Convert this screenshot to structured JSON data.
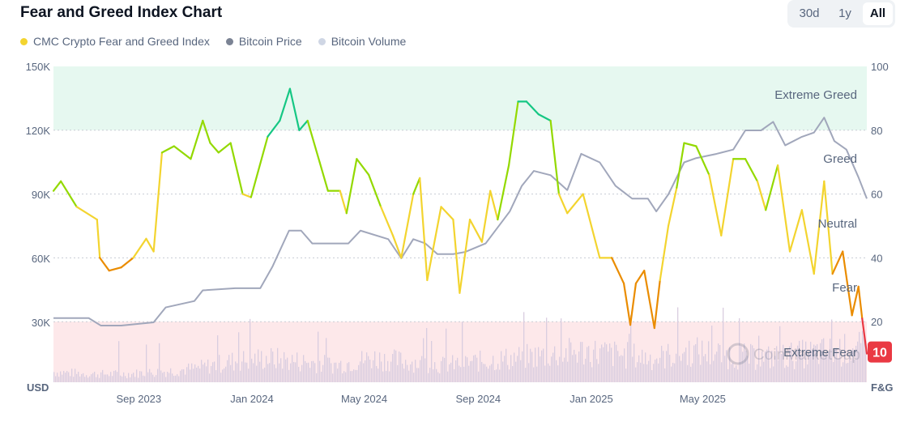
{
  "title": "Fear and Greed Index Chart",
  "range_buttons": [
    {
      "label": "30d",
      "active": false
    },
    {
      "label": "1y",
      "active": false
    },
    {
      "label": "All",
      "active": true
    }
  ],
  "legend": [
    {
      "label": "CMC Crypto Fear and Greed Index",
      "color": "#f3d42f"
    },
    {
      "label": "Bitcoin Price",
      "color": "#7b8394"
    },
    {
      "label": "Bitcoin Volume",
      "color": "#cfd6e4"
    }
  ],
  "watermark": "CoinMarketCap",
  "current_value": "10",
  "chart_data": {
    "type": "line",
    "x_range": [
      "2023-06-01",
      "2025-10-25"
    ],
    "x_ticks": [
      {
        "date": "2023-09-01",
        "label": "Sep 2023"
      },
      {
        "date": "2024-01-01",
        "label": "Jan 2024"
      },
      {
        "date": "2024-05-01",
        "label": "May 2024"
      },
      {
        "date": "2024-09-01",
        "label": "Sep 2024"
      },
      {
        "date": "2025-01-01",
        "label": "Jan 2025"
      },
      {
        "date": "2025-05-01",
        "label": "May 2025"
      }
    ],
    "left_axis": {
      "label": "USD",
      "range": [
        0,
        150000
      ],
      "ticks": [
        "30K",
        "60K",
        "90K",
        "120K",
        "150K"
      ],
      "tick_values": [
        30000,
        60000,
        90000,
        120000,
        150000
      ]
    },
    "right_axis": {
      "label": "F&G",
      "range": [
        0,
        100
      ],
      "ticks": [
        "20",
        "40",
        "60",
        "80",
        "100"
      ],
      "tick_values": [
        20,
        40,
        60,
        80,
        100
      ]
    },
    "zones": [
      {
        "label": "Extreme Greed",
        "from": 80,
        "to": 100,
        "color": "#e6f8f0"
      },
      {
        "label": "Greed",
        "from": 60,
        "to": 80
      },
      {
        "label": "Neutral",
        "from": 40,
        "to": 60
      },
      {
        "label": "Fear",
        "from": 20,
        "to": 40
      },
      {
        "label": "Extreme Fear",
        "from": 0,
        "to": 20,
        "color": "#fde8ea"
      }
    ],
    "grid": true,
    "series": [
      {
        "name": "CMC Crypto Fear and Greed Index",
        "axis": "right",
        "colors": {
          "extreme_fear": "#ea3943",
          "fear": "#ea8c00",
          "neutral": "#f3d42f",
          "greed": "#93d900",
          "extreme_greed": "#16c784"
        },
        "points": [
          [
            "2023-06-01",
            61
          ],
          [
            "2023-06-09",
            64
          ],
          [
            "2023-06-26",
            56
          ],
          [
            "2023-07-18",
            52
          ],
          [
            "2023-07-21",
            40
          ],
          [
            "2023-07-31",
            36
          ],
          [
            "2023-08-13",
            37
          ],
          [
            "2023-08-26",
            40
          ],
          [
            "2023-09-09",
            46
          ],
          [
            "2023-09-17",
            42
          ],
          [
            "2023-09-26",
            73
          ],
          [
            "2023-10-09",
            75
          ],
          [
            "2023-10-27",
            71
          ],
          [
            "2023-11-09",
            83
          ],
          [
            "2023-11-17",
            76
          ],
          [
            "2023-11-26",
            73
          ],
          [
            "2023-12-09",
            76
          ],
          [
            "2023-12-22",
            60
          ],
          [
            "2023-12-31",
            59
          ],
          [
            "2024-01-18",
            78
          ],
          [
            "2024-01-31",
            83
          ],
          [
            "2024-02-11",
            93
          ],
          [
            "2024-02-21",
            80
          ],
          [
            "2024-03-01",
            83
          ],
          [
            "2024-03-14",
            70
          ],
          [
            "2024-03-23",
            61
          ],
          [
            "2024-04-05",
            61
          ],
          [
            "2024-04-12",
            54
          ],
          [
            "2024-04-23",
            71
          ],
          [
            "2024-05-06",
            66
          ],
          [
            "2024-05-19",
            56
          ],
          [
            "2024-06-01",
            47
          ],
          [
            "2024-06-10",
            40
          ],
          [
            "2024-06-23",
            60
          ],
          [
            "2024-06-30",
            65
          ],
          [
            "2024-07-08",
            33
          ],
          [
            "2024-07-23",
            56
          ],
          [
            "2024-08-05",
            52
          ],
          [
            "2024-08-12",
            29
          ],
          [
            "2024-08-23",
            52
          ],
          [
            "2024-09-05",
            45
          ],
          [
            "2024-09-14",
            61
          ],
          [
            "2024-09-22",
            52
          ],
          [
            "2024-10-04",
            69
          ],
          [
            "2024-10-14",
            89
          ],
          [
            "2024-10-23",
            89
          ],
          [
            "2024-11-05",
            85
          ],
          [
            "2024-11-18",
            83
          ],
          [
            "2024-11-27",
            60
          ],
          [
            "2024-12-06",
            54
          ],
          [
            "2024-12-23",
            60
          ],
          [
            "2025-01-10",
            40
          ],
          [
            "2025-01-23",
            40
          ],
          [
            "2025-02-05",
            32
          ],
          [
            "2025-02-12",
            19
          ],
          [
            "2025-02-18",
            32
          ],
          [
            "2025-02-27",
            36
          ],
          [
            "2025-03-10",
            18
          ],
          [
            "2025-03-16",
            33
          ],
          [
            "2025-03-25",
            50
          ],
          [
            "2025-04-03",
            62
          ],
          [
            "2025-04-11",
            76
          ],
          [
            "2025-04-24",
            75
          ],
          [
            "2025-05-08",
            66
          ],
          [
            "2025-05-21",
            47
          ],
          [
            "2025-06-03",
            71
          ],
          [
            "2025-06-16",
            71
          ],
          [
            "2025-06-29",
            64
          ],
          [
            "2025-07-08",
            55
          ],
          [
            "2025-07-21",
            69
          ],
          [
            "2025-08-03",
            42
          ],
          [
            "2025-08-16",
            55
          ],
          [
            "2025-08-29",
            35
          ],
          [
            "2025-09-09",
            64
          ],
          [
            "2025-09-18",
            35
          ],
          [
            "2025-09-29",
            42
          ],
          [
            "2025-10-09",
            22
          ],
          [
            "2025-10-16",
            31
          ],
          [
            "2025-10-20",
            21
          ],
          [
            "2025-10-25",
            10
          ]
        ]
      },
      {
        "name": "Bitcoin Price",
        "axis": "left",
        "color": "#a1a7bb",
        "points": [
          [
            "2023-06-01",
            32000
          ],
          [
            "2023-07-09",
            32000
          ],
          [
            "2023-07-22",
            28500
          ],
          [
            "2023-08-13",
            28500
          ],
          [
            "2023-09-17",
            30000
          ],
          [
            "2023-09-30",
            37000
          ],
          [
            "2023-10-31",
            40000
          ],
          [
            "2023-11-09",
            45000
          ],
          [
            "2023-12-14",
            46000
          ],
          [
            "2024-01-10",
            46000
          ],
          [
            "2024-01-23",
            56000
          ],
          [
            "2024-02-10",
            73000
          ],
          [
            "2024-02-23",
            73000
          ],
          [
            "2024-03-06",
            67000
          ],
          [
            "2024-03-19",
            67000
          ],
          [
            "2024-04-14",
            67000
          ],
          [
            "2024-04-27",
            73000
          ],
          [
            "2024-05-27",
            69000
          ],
          [
            "2024-06-10",
            60000
          ],
          [
            "2024-06-23",
            69000
          ],
          [
            "2024-07-06",
            67000
          ],
          [
            "2024-07-19",
            62000
          ],
          [
            "2024-08-05",
            62000
          ],
          [
            "2024-08-18",
            63000
          ],
          [
            "2024-09-09",
            67000
          ],
          [
            "2024-10-05",
            82000
          ],
          [
            "2024-10-18",
            94000
          ],
          [
            "2024-10-31",
            101000
          ],
          [
            "2024-11-18",
            99000
          ],
          [
            "2024-12-06",
            92000
          ],
          [
            "2024-12-21",
            109000
          ],
          [
            "2025-01-10",
            105000
          ],
          [
            "2025-01-27",
            94000
          ],
          [
            "2025-02-14",
            88000
          ],
          [
            "2025-03-03",
            88000
          ],
          [
            "2025-03-12",
            82000
          ],
          [
            "2025-03-25",
            90000
          ],
          [
            "2025-04-11",
            105000
          ],
          [
            "2025-04-24",
            107000
          ],
          [
            "2025-05-16",
            109000
          ],
          [
            "2025-06-03",
            111000
          ],
          [
            "2025-06-16",
            120000
          ],
          [
            "2025-07-03",
            120000
          ],
          [
            "2025-07-16",
            124000
          ],
          [
            "2025-07-29",
            113000
          ],
          [
            "2025-08-16",
            117000
          ],
          [
            "2025-08-29",
            119000
          ],
          [
            "2025-09-09",
            126000
          ],
          [
            "2025-09-20",
            115000
          ],
          [
            "2025-10-03",
            111000
          ],
          [
            "2025-10-16",
            98000
          ],
          [
            "2025-10-25",
            88000
          ]
        ]
      },
      {
        "name": "Bitcoin Volume",
        "axis": "none",
        "color": "#d9cde0",
        "relative_levels": [
          0.15,
          0.12,
          0.12,
          0.15,
          0.2,
          0.3,
          0.35,
          0.3,
          0.25,
          0.35,
          0.3,
          0.25,
          0.3,
          0.35,
          0.4,
          0.45,
          0.4,
          0.35,
          0.45,
          0.4,
          0.35,
          0.4,
          0.45,
          0.5
        ]
      }
    ]
  }
}
